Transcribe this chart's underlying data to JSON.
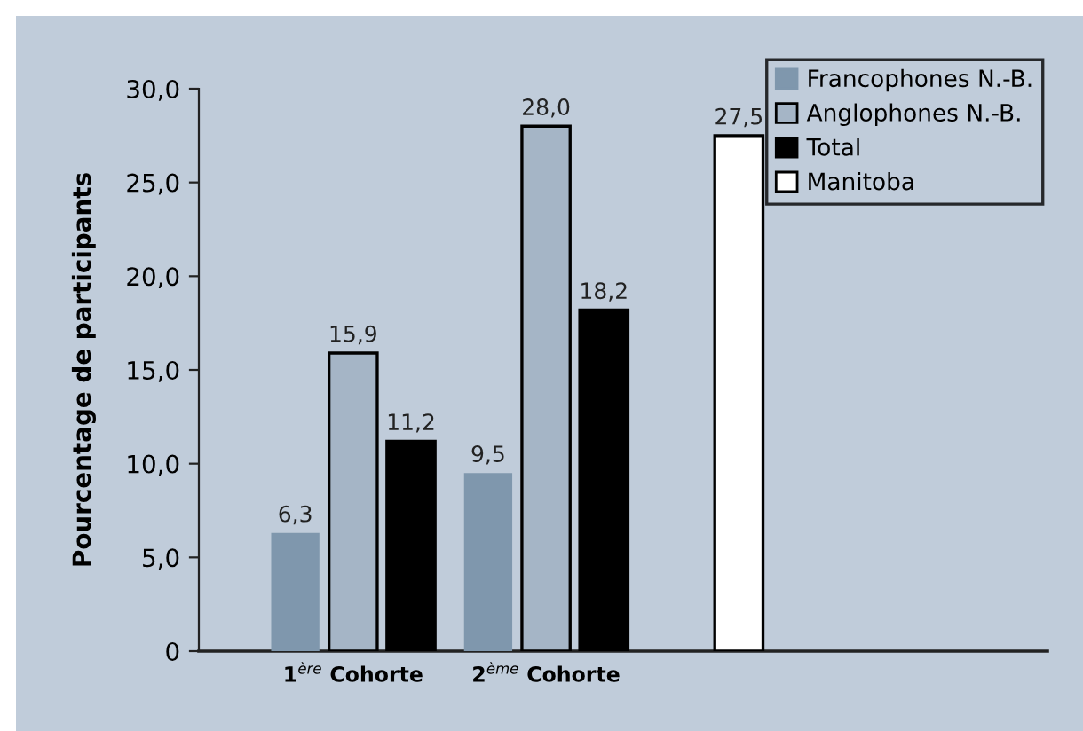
{
  "chart_data": {
    "type": "bar",
    "ylabel": "Pourcentage de participants",
    "categories": [
      "1$^{ère}$ Cohorte",
      "2$^{ème}$ Cohorte",
      null
    ],
    "series": [
      {
        "name": "Francophones N.-B.",
        "color": "#7f97ad",
        "values": [
          6.3,
          9.5,
          null
        ],
        "value_labels": [
          "6,3",
          "9,5",
          null
        ]
      },
      {
        "name": "Anglophones N.-B.",
        "color": "#a5b5c6",
        "values": [
          15.9,
          28.0,
          null
        ],
        "value_labels": [
          "15,9",
          "28,0",
          null
        ]
      },
      {
        "name": "Total",
        "color": "#000000",
        "values": [
          11.2,
          18.2,
          null
        ],
        "value_labels": [
          "11,2",
          "18,2",
          null
        ]
      },
      {
        "name": "Manitoba",
        "color": "#ffffff",
        "values": [
          null,
          null,
          27.5
        ],
        "value_labels": [
          null,
          null,
          "27,5"
        ]
      }
    ],
    "ylim": [
      0,
      30
    ],
    "yticks": [
      {
        "value": 0,
        "label": "0"
      },
      {
        "value": 5,
        "label": "5,0"
      },
      {
        "value": 10,
        "label": "10,0"
      },
      {
        "value": 15,
        "label": "15,0"
      },
      {
        "value": 20,
        "label": "20,0"
      },
      {
        "value": 25,
        "label": "25,0"
      },
      {
        "value": 30,
        "label": "30,0"
      }
    ],
    "grid": false,
    "legend": "top right"
  }
}
